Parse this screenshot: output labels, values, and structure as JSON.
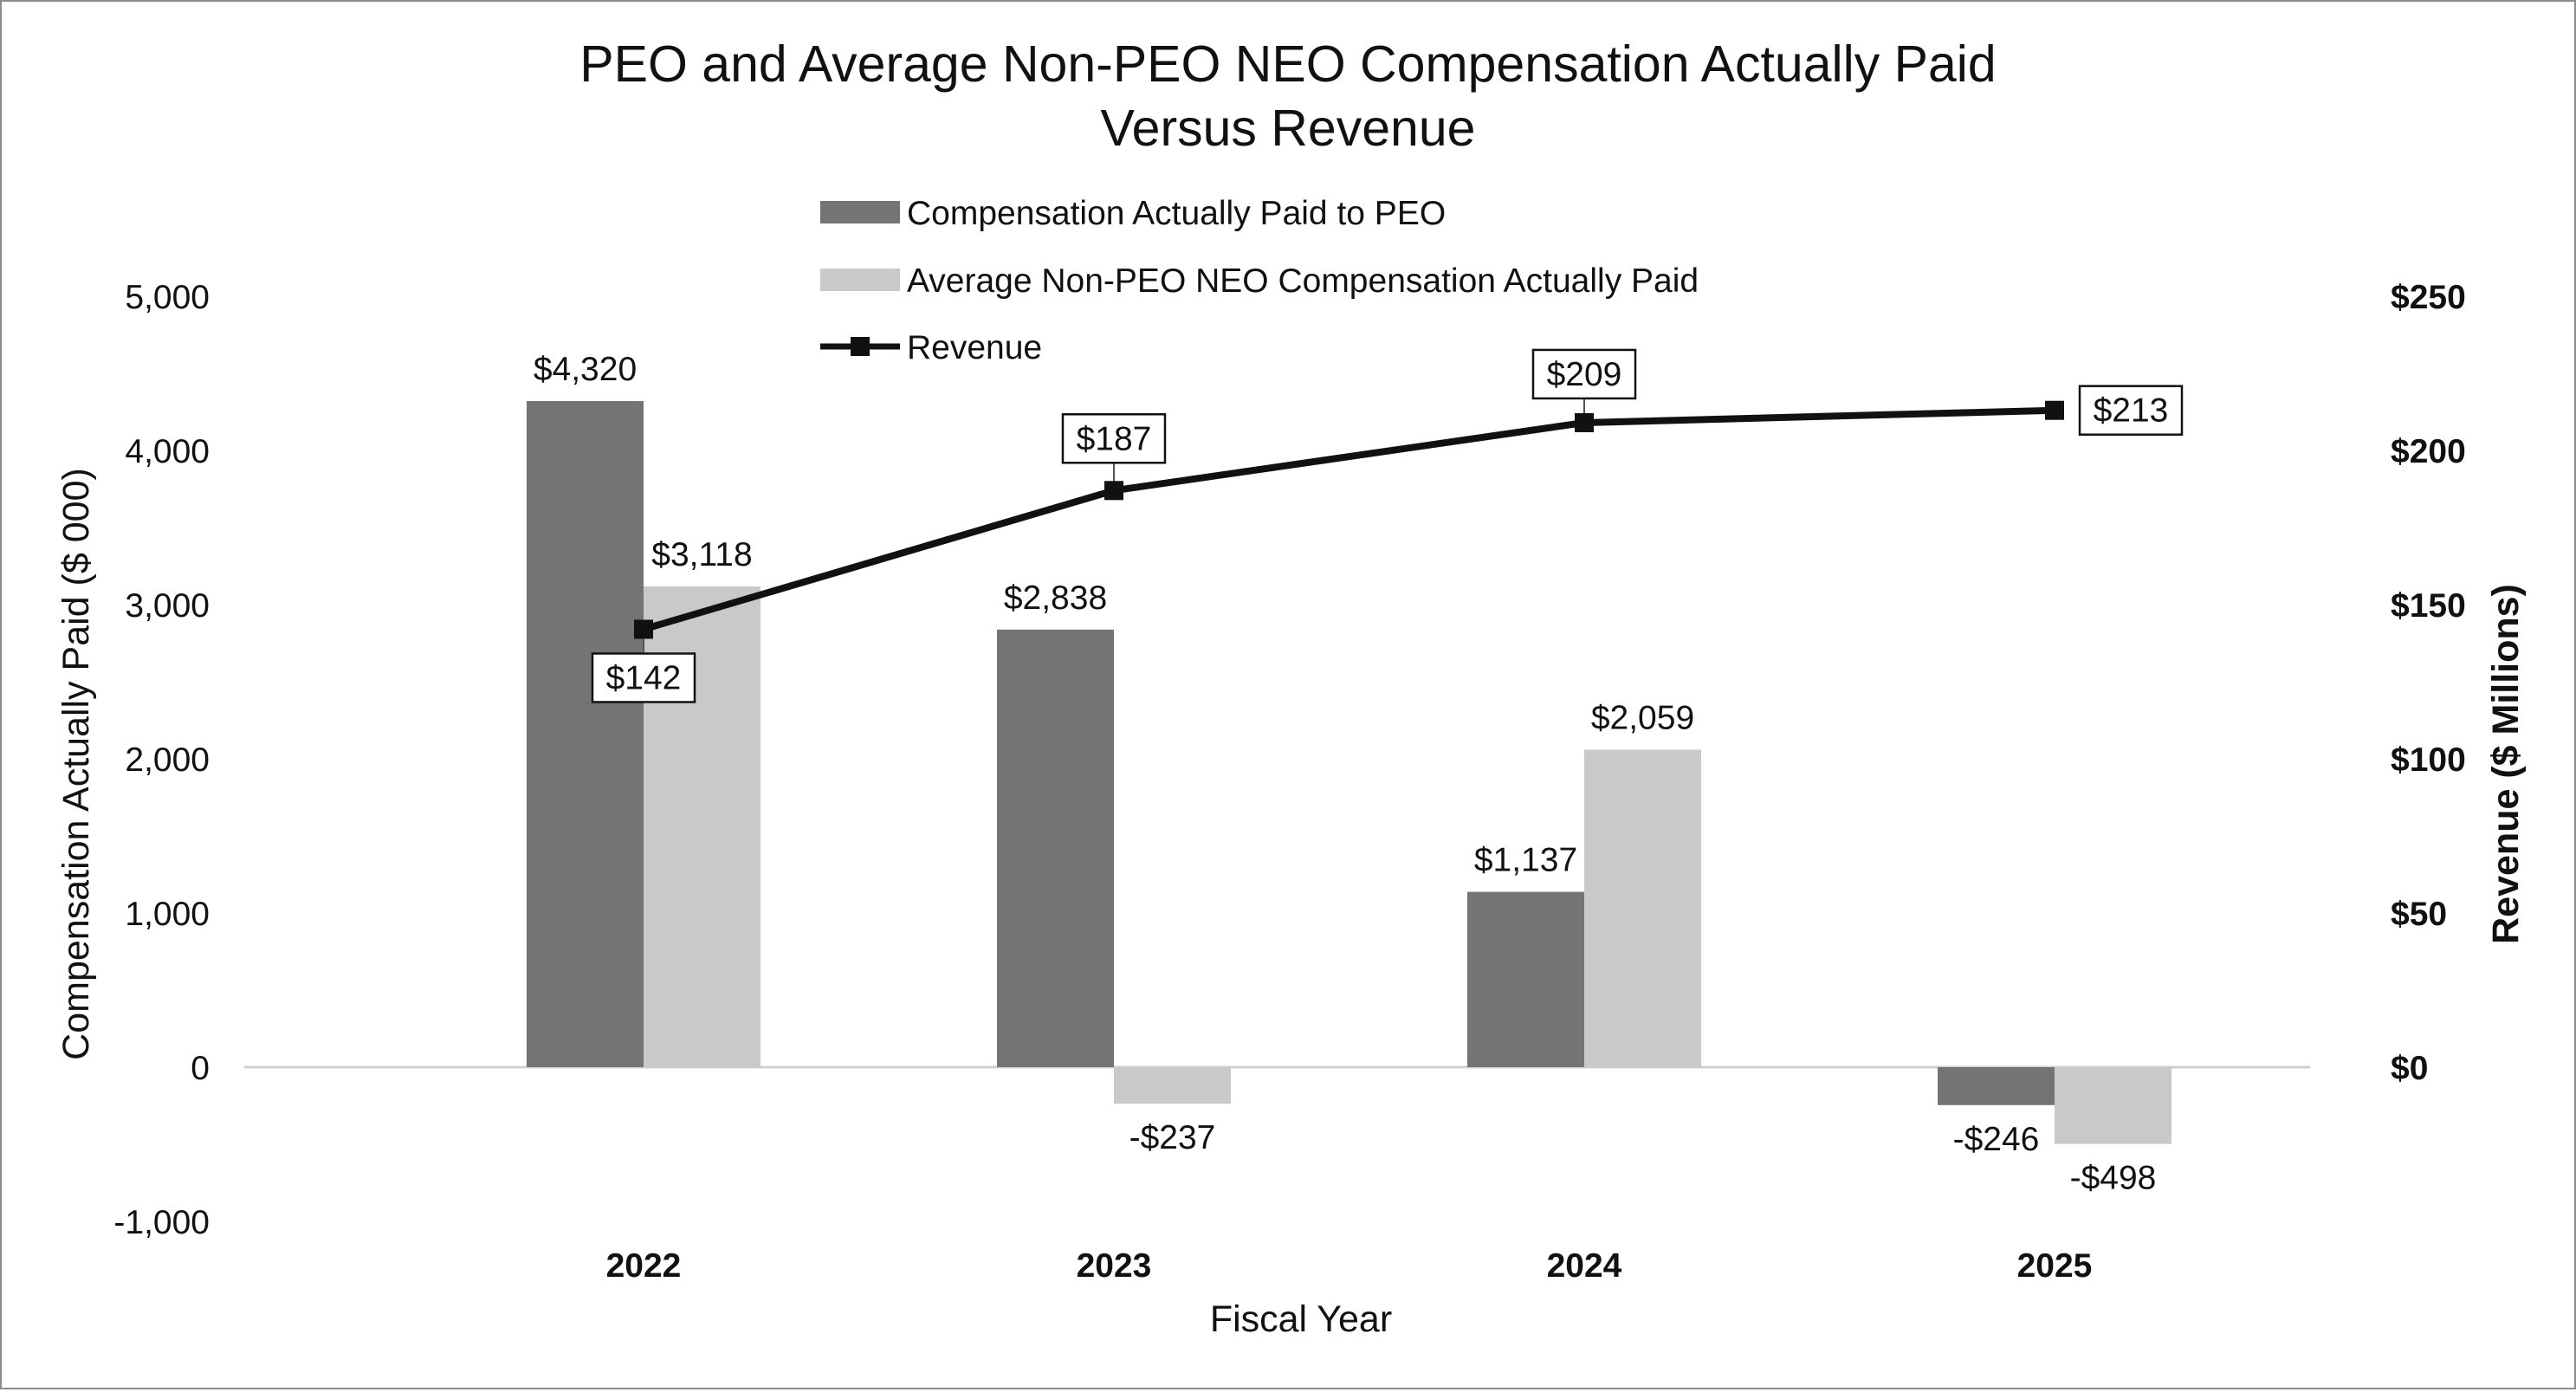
{
  "chart_data": {
    "type": "bar",
    "title_lines": [
      "PEO and Average Non-PEO NEO Compensation Actually Paid",
      "Versus Revenue"
    ],
    "categories": [
      "2022",
      "2023",
      "2024",
      "2025"
    ],
    "xlabel": "Fiscal Year",
    "ylabel": "Compensation Actually Paid ($ 000)",
    "ylabel_right": "Revenue ($ Millions)",
    "ylim": [
      -1000,
      5000
    ],
    "ylim_right": [
      -50,
      250
    ],
    "yticks": [
      -1000,
      0,
      1000,
      2000,
      3000,
      4000,
      5000
    ],
    "ytick_labels": [
      "-1,000",
      "0",
      "1,000",
      "2,000",
      "3,000",
      "4,000",
      "5,000"
    ],
    "yticks_right": [
      0,
      50,
      100,
      150,
      200,
      250
    ],
    "ytick_labels_right": [
      "$0",
      "$50",
      "$100",
      "$150",
      "$200",
      "$250"
    ],
    "series": [
      {
        "name": "Compensation Actually Paid to PEO",
        "kind": "bar",
        "axis": "left",
        "color": "#757375",
        "values": [
          4320,
          2838,
          1137,
          -246
        ],
        "labels": [
          "$4,320",
          "$2,838",
          "$1,137",
          "-$246"
        ]
      },
      {
        "name": "Average Non-PEO NEO Compensation Actually Paid",
        "kind": "bar",
        "axis": "left",
        "color": "#c8c9c9",
        "values": [
          3118,
          -237,
          2059,
          -498
        ],
        "labels": [
          "$3,118",
          "-$237",
          "$2,059",
          "-$498"
        ]
      },
      {
        "name": "Revenue",
        "kind": "line",
        "axis": "right",
        "color": "#111111",
        "values": [
          142,
          187,
          209,
          213
        ],
        "labels": [
          "$142",
          "$187",
          "$209",
          "$213"
        ]
      }
    ],
    "grid": false,
    "legend_position": "top-center"
  }
}
